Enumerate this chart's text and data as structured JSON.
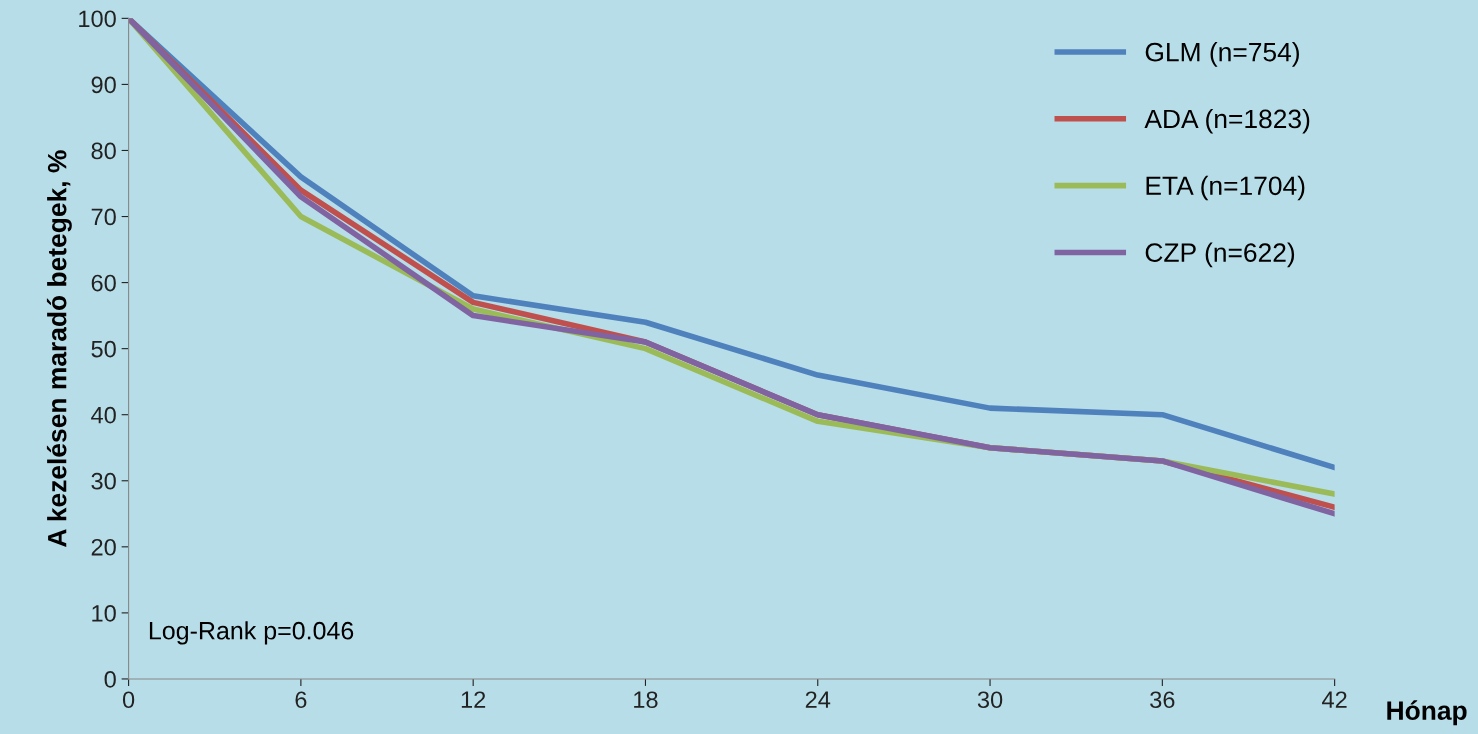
{
  "chart_data": {
    "type": "line",
    "xlabel": "Hónap",
    "ylabel": "A kezelésen maradó betegek, %",
    "x": [
      0,
      6,
      12,
      18,
      24,
      30,
      36,
      42
    ],
    "series": [
      {
        "name": "GLM (n=754)",
        "color": "#4f81bd",
        "values": [
          100,
          76,
          58,
          54,
          46,
          41,
          40,
          32
        ]
      },
      {
        "name": "ADA (n=1823)",
        "color": "#c0504d",
        "values": [
          100,
          74,
          57,
          51,
          40,
          35,
          33,
          26
        ]
      },
      {
        "name": "ETA (n=1704)",
        "color": "#9bbb59",
        "values": [
          100,
          70,
          56,
          50,
          39,
          35,
          33,
          28
        ]
      },
      {
        "name": "CZP (n=622)",
        "color": "#8064a2",
        "values": [
          100,
          73,
          55,
          51,
          40,
          35,
          33,
          25
        ]
      }
    ],
    "xlim": [
      0,
      42
    ],
    "xticks": [
      0,
      6,
      12,
      18,
      24,
      30,
      36,
      42
    ],
    "ylim": [
      0,
      100
    ],
    "yticks": [
      0,
      10,
      20,
      30,
      40,
      50,
      60,
      70,
      80,
      90,
      100
    ],
    "annotations": [
      "Log-Rank p=0.046"
    ],
    "grid": false,
    "legend": "top right",
    "marker": "none",
    "line_style": "solid"
  }
}
